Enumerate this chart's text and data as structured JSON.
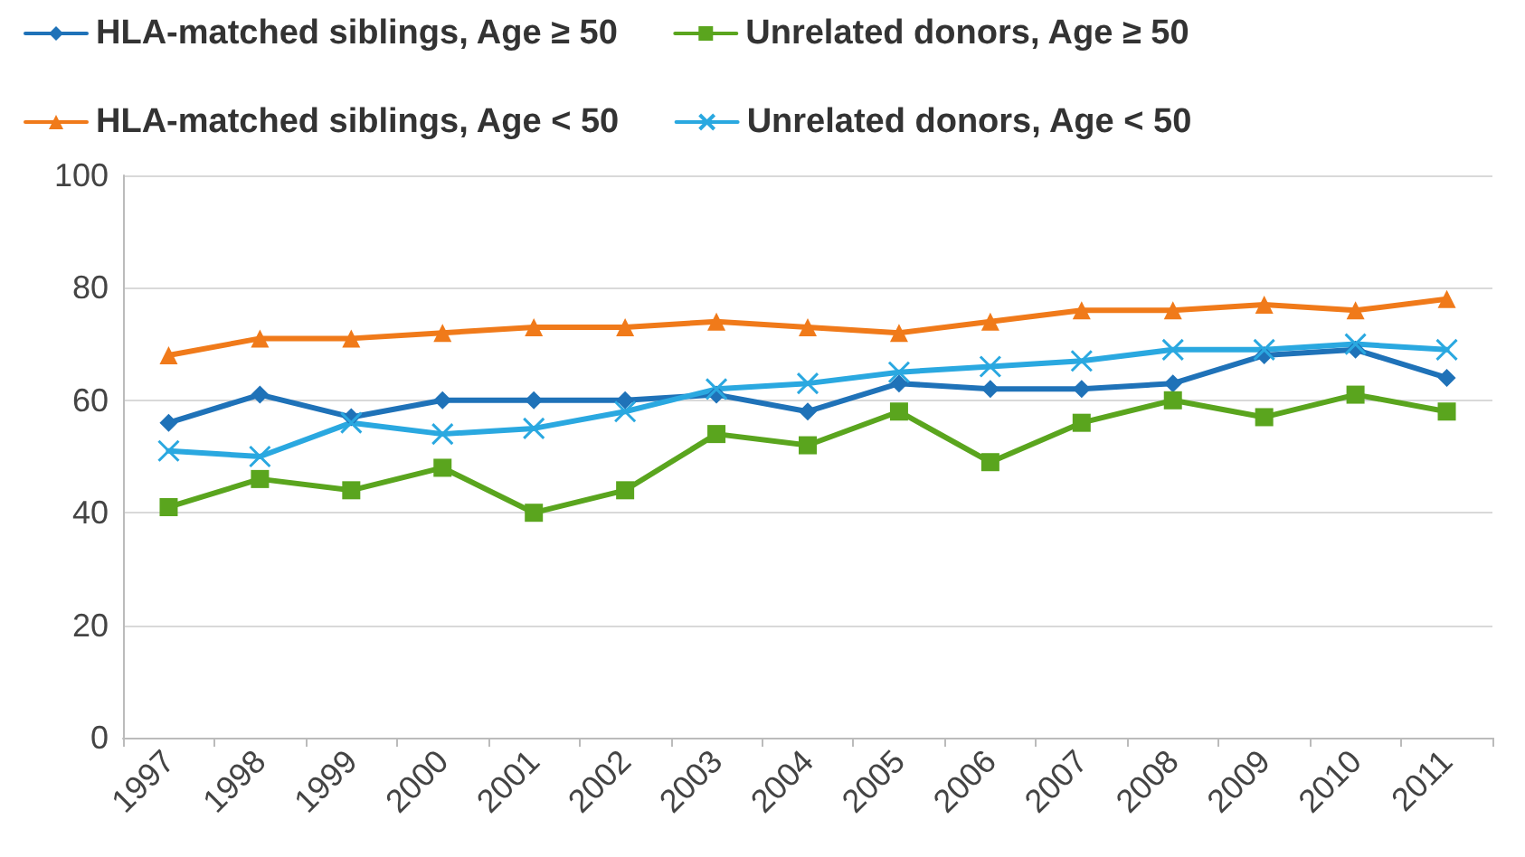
{
  "chart_data": {
    "type": "line",
    "categories": [
      "1997",
      "1998",
      "1999",
      "2000",
      "2001",
      "2002",
      "2003",
      "2004",
      "2005",
      "2006",
      "2007",
      "2008",
      "2009",
      "2010",
      "2011"
    ],
    "series": [
      {
        "name": "HLA-matched siblings, Age ≥ 50",
        "color": "#1f72b8",
        "marker": "diamond",
        "values": [
          56,
          61,
          57,
          60,
          60,
          60,
          61,
          58,
          63,
          62,
          62,
          63,
          68,
          69,
          64
        ]
      },
      {
        "name": "HLA-matched siblings, Age < 50",
        "color": "#f07a1a",
        "marker": "triangle",
        "values": [
          68,
          71,
          71,
          72,
          73,
          73,
          74,
          73,
          72,
          74,
          76,
          76,
          77,
          76,
          78
        ]
      },
      {
        "name": "Unrelated donors, Age ≥ 50",
        "color": "#5aa51e",
        "marker": "square",
        "values": [
          41,
          46,
          44,
          48,
          40,
          44,
          54,
          52,
          58,
          49,
          56,
          60,
          57,
          61,
          58
        ]
      },
      {
        "name": "Unrelated donors, Age < 50",
        "color": "#2aa8e0",
        "marker": "cross",
        "values": [
          51,
          50,
          56,
          54,
          55,
          58,
          62,
          63,
          65,
          66,
          67,
          69,
          69,
          70,
          69
        ]
      }
    ],
    "ylim": [
      0,
      100
    ],
    "yticks": [
      0,
      20,
      40,
      60,
      80,
      100
    ],
    "grid": "y",
    "legend": "top",
    "line_style": "solid"
  }
}
